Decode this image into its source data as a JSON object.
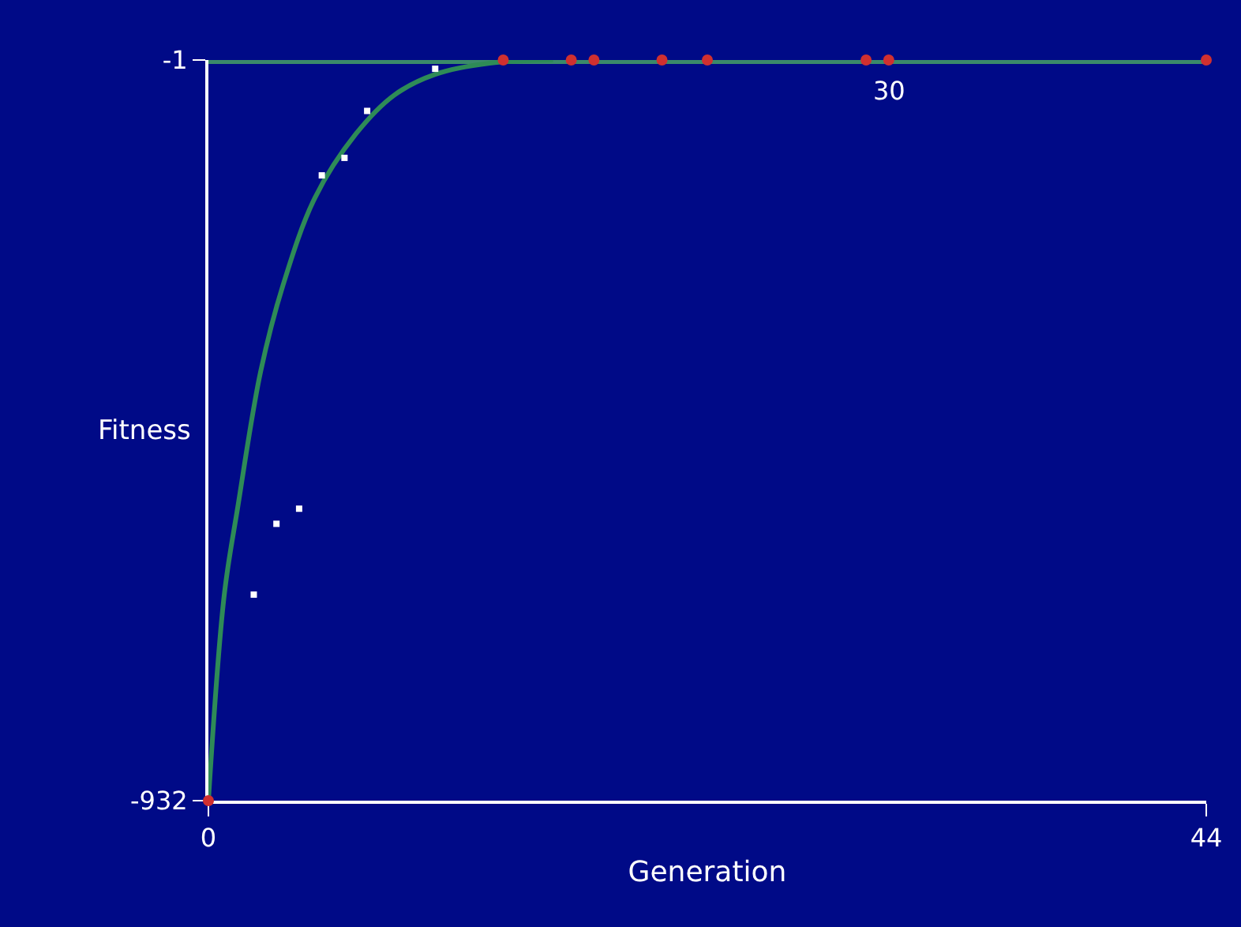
{
  "chart_data": {
    "type": "line",
    "xlabel": "Generation",
    "ylabel": "Fitness",
    "xlim": [
      0,
      44
    ],
    "ylim": [
      -932,
      -1
    ],
    "xticks": [
      0,
      44
    ],
    "yticks": [
      -932,
      -1
    ],
    "series": [
      {
        "color": "#2e8b57",
        "marker": "none",
        "x": [
          0,
          0.7,
          1.3,
          2.3,
          3.3,
          4.7,
          6.5,
          8.2,
          10,
          12.4,
          15.2
        ],
        "values": [
          -932,
          -673,
          -562,
          -393,
          -283,
          -174,
          -94,
          -45,
          -19,
          -5,
          -1
        ]
      },
      {
        "type": "scatter",
        "color": "#ffffff",
        "marker": "square",
        "x": [
          2,
          3,
          4,
          5,
          6,
          7,
          10
        ],
        "values": [
          -673,
          -584,
          -565,
          -146,
          -124,
          -65,
          -12
        ]
      },
      {
        "type": "scatter",
        "color": "#d03030",
        "marker": "circle",
        "x": [
          0,
          13,
          16,
          17,
          20,
          22,
          29,
          30,
          44
        ],
        "values": [
          -932,
          -1,
          -1,
          -1,
          -1,
          -1,
          -1,
          -1,
          -1
        ]
      }
    ],
    "ref_lines": [
      {
        "axis": "y",
        "value": -1,
        "color": "#3a8a6a"
      }
    ],
    "annotations": [
      {
        "text": "30",
        "x": 30,
        "y": -1
      }
    ]
  }
}
